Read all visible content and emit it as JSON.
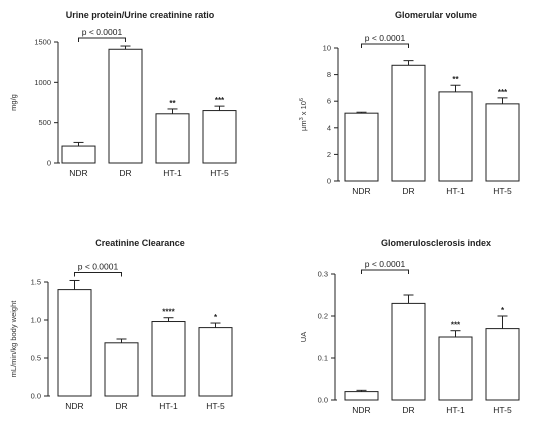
{
  "chart_data": [
    {
      "type": "bar",
      "title": "Urine protein/Urine creatinine ratio",
      "ylabel": "mg/g",
      "ylabel_sup": "",
      "ylabel_tail": "",
      "categories": [
        "NDR",
        "DR",
        "HT-1",
        "HT-5"
      ],
      "values": [
        210,
        1410,
        610,
        650
      ],
      "errors": [
        45,
        40,
        60,
        55
      ],
      "ylim": [
        0,
        1500
      ],
      "yticks": [
        "0",
        "500",
        "1000",
        "1500"
      ],
      "significance": [
        "",
        "",
        "**",
        "***"
      ],
      "comparison": "p < 0.0001"
    },
    {
      "type": "bar",
      "title": "Glomerular volume",
      "ylabel": "µm",
      "ylabel_sup": "3",
      "ylabel_tail": " x 10",
      "ylabel_sup2": "6",
      "categories": [
        "NDR",
        "DR",
        "HT-1",
        "HT-5"
      ],
      "values": [
        5.1,
        8.7,
        6.7,
        5.8
      ],
      "errors": [
        0.07,
        0.35,
        0.5,
        0.45
      ],
      "ylim": [
        0,
        10
      ],
      "yticks": [
        "0",
        "2",
        "4",
        "6",
        "8",
        "10"
      ],
      "significance": [
        "",
        "",
        "**",
        "***"
      ],
      "comparison": "p < 0.0001"
    },
    {
      "type": "bar",
      "title": "Creatinine Clearance",
      "ylabel": "mL/min/kg body weight",
      "ylabel_sup": "",
      "ylabel_tail": "",
      "categories": [
        "NDR",
        "DR",
        "HT-1",
        "HT-5"
      ],
      "values": [
        1.4,
        0.7,
        0.98,
        0.9
      ],
      "errors": [
        0.12,
        0.05,
        0.05,
        0.06
      ],
      "ylim": [
        0,
        1.5
      ],
      "yticks": [
        "0.0",
        "0.5",
        "1.0",
        "1.5"
      ],
      "significance": [
        "",
        "",
        "****",
        "*"
      ],
      "comparison": "p < 0.0001"
    },
    {
      "type": "bar",
      "title": "Glomerulosclerosis index",
      "ylabel": "UA",
      "ylabel_sup": "",
      "ylabel_tail": "",
      "categories": [
        "NDR",
        "DR",
        "HT-1",
        "HT-5"
      ],
      "values": [
        0.02,
        0.23,
        0.15,
        0.17
      ],
      "errors": [
        0.003,
        0.02,
        0.015,
        0.03
      ],
      "ylim": [
        0,
        0.3
      ],
      "yticks": [
        "0.0",
        "0.1",
        "0.2",
        "0.3"
      ],
      "significance": [
        "",
        "",
        "***",
        "*"
      ],
      "comparison": "p < 0.0001"
    }
  ]
}
